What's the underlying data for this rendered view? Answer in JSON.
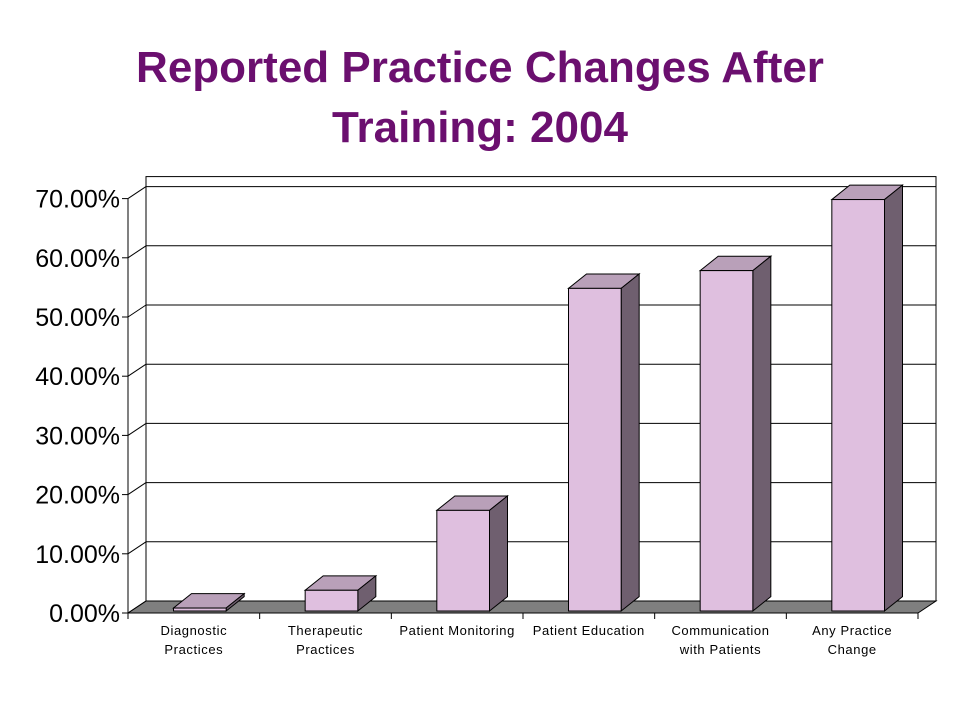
{
  "title_lines": [
    "Reported Practice Changes After",
    "Training: 2004"
  ],
  "colors": {
    "title": "#6b0f6f",
    "bar_front": "#dfbfdf",
    "bar_side": "#6f5f6f",
    "bar_top": "#b9a0b9",
    "floor": "#7f7f7f",
    "grid": "#000000"
  },
  "chart_data": {
    "type": "bar",
    "categories": [
      [
        "Diagnostic",
        "Practices"
      ],
      [
        "Therapeutic",
        "Practices"
      ],
      [
        "Patient Monitoring"
      ],
      [
        "Patient Education"
      ],
      [
        "Communication",
        "with Patients"
      ],
      [
        "Any Practice",
        "Change"
      ]
    ],
    "values": [
      0.5,
      3.5,
      17,
      54.5,
      57.5,
      69.5
    ],
    "ylim": [
      0,
      70
    ],
    "yticks": [
      0,
      10,
      20,
      30,
      40,
      50,
      60,
      70
    ],
    "ytick_labels": [
      "0.00%",
      "10.00%",
      "20.00%",
      "30.00%",
      "40.00%",
      "50.00%",
      "60.00%",
      "70.00%"
    ],
    "grid": true,
    "style": "3d-column"
  }
}
